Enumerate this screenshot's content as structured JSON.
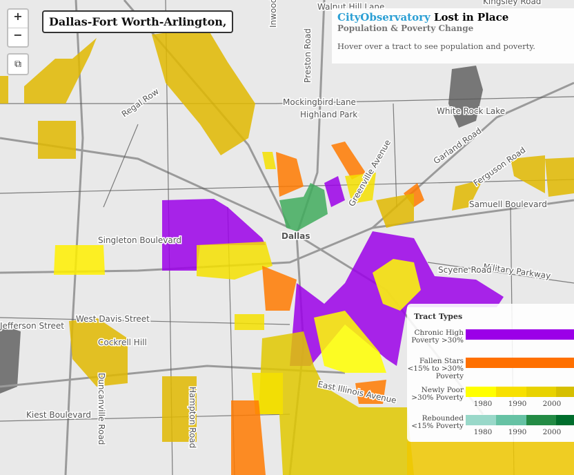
{
  "title": "Dallas-Fort Worth-Arlington,",
  "controls": {
    "zoom_in": "+",
    "zoom_out": "−",
    "external": "⧉"
  },
  "info": {
    "brand": "CityObservatory",
    "name": "Lost in Place",
    "subtitle": "Population & Poverty Change",
    "hint": "Hover over a tract to see population and poverty."
  },
  "legend": {
    "title": "Tract Types",
    "items": [
      {
        "name": "Chronic High Poverty >30%",
        "colors": [
          "#9b00e8"
        ]
      },
      {
        "name": "Fallen Stars <15% to >30% Poverty",
        "colors": [
          "#ff7000"
        ]
      },
      {
        "name": "Newly Poor >30% Poverty",
        "colors": [
          "#ffff00",
          "#f7e000",
          "#e8d200",
          "#d6bf00"
        ],
        "years": [
          "1980",
          "1990",
          "2000"
        ]
      },
      {
        "name": "Rebounded <15% Poverty",
        "colors": [
          "#99d8c9",
          "#66c2a4",
          "#238b45",
          "#006d2c"
        ],
        "years": [
          "1980",
          "1990",
          "2000"
        ]
      }
    ]
  },
  "map_labels": [
    "Walnut Hill Lane",
    "Kingsley Road",
    "Mockingbird Lane",
    "Highland Park",
    "White Rock Lake",
    "Regal Row",
    "Singleton Boulevard",
    "Dallas",
    "West Davis Street",
    "Jefferson Street",
    "Military Parkway",
    "Scyene Road",
    "East Illinois Avenue",
    "Kiest Boulevard",
    "Garland Road",
    "Ferguson Road",
    "Samuell Boulevard",
    "Preston Road",
    "Inwood Road",
    "Greenville Avenue",
    "Cockrell Hill",
    "Duncanville Road",
    "Hampton Road"
  ]
}
